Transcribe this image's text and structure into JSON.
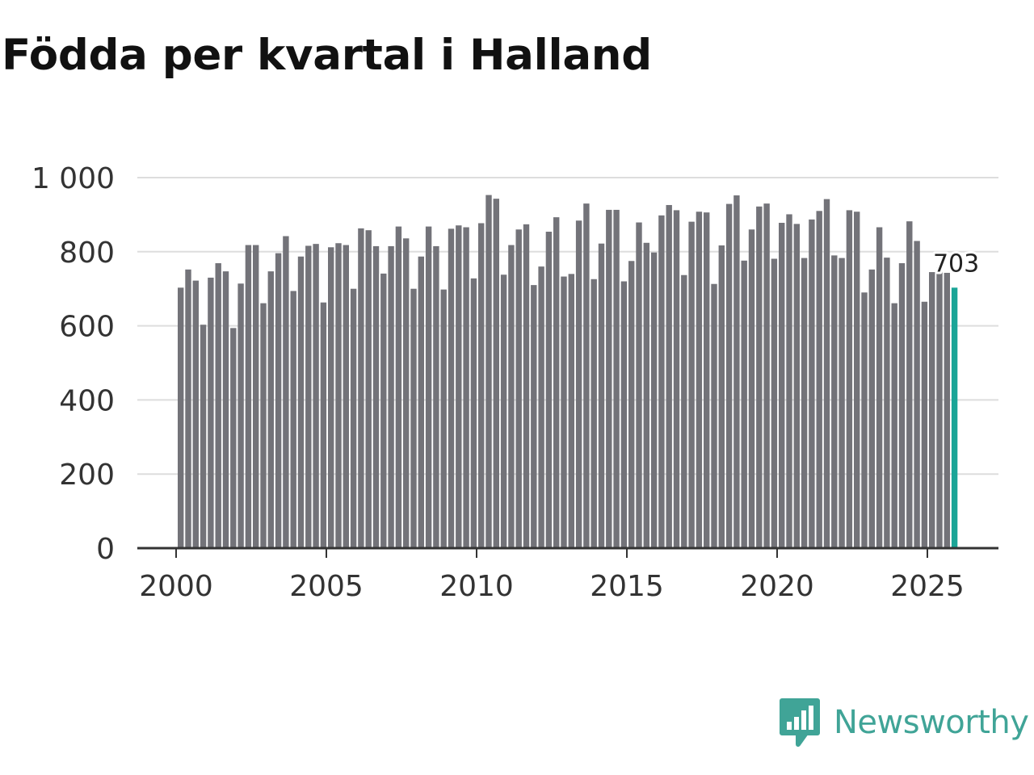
{
  "title": "Födda per kvartal i Halland",
  "brand": {
    "name": "Newsworthy",
    "color": "#40a497",
    "icon": "newsworthy-logo-icon"
  },
  "colors": {
    "bar": "#737379",
    "highlight": "#1aa597",
    "grid": "#dddddd",
    "axis": "#333333"
  },
  "chart_data": {
    "type": "bar",
    "title": "Födda per kvartal i Halland",
    "xlabel": "",
    "ylabel": "",
    "ylim": [
      0,
      1000
    ],
    "yticks": [
      0,
      200,
      400,
      600,
      800,
      1000
    ],
    "ytick_labels": [
      "0",
      "200",
      "400",
      "600",
      "800",
      "1 000"
    ],
    "xticks": [
      2000,
      2005,
      2010,
      2015,
      2020,
      2025
    ],
    "xtick_labels": [
      "2000",
      "2005",
      "2010",
      "2015",
      "2020",
      "2025"
    ],
    "start_year": 2000,
    "last_value_label": "703",
    "values": [
      703,
      752,
      722,
      603,
      730,
      769,
      747,
      594,
      714,
      818,
      818,
      661,
      747,
      796,
      842,
      694,
      787,
      816,
      821,
      663,
      812,
      823,
      818,
      700,
      863,
      858,
      815,
      741,
      815,
      868,
      836,
      700,
      787,
      868,
      815,
      698,
      862,
      871,
      866,
      728,
      877,
      953,
      943,
      738,
      818,
      860,
      874,
      710,
      760,
      854,
      893,
      733,
      740,
      884,
      930,
      726,
      822,
      913,
      913,
      720,
      775,
      879,
      824,
      798,
      898,
      926,
      912,
      737,
      881,
      908,
      906,
      713,
      817,
      929,
      952,
      776,
      860,
      922,
      930,
      781,
      878,
      901,
      875,
      783,
      887,
      910,
      942,
      790,
      783,
      912,
      908,
      690,
      752,
      866,
      784,
      661,
      769,
      882,
      829,
      665,
      745,
      758,
      743,
      703
    ]
  }
}
